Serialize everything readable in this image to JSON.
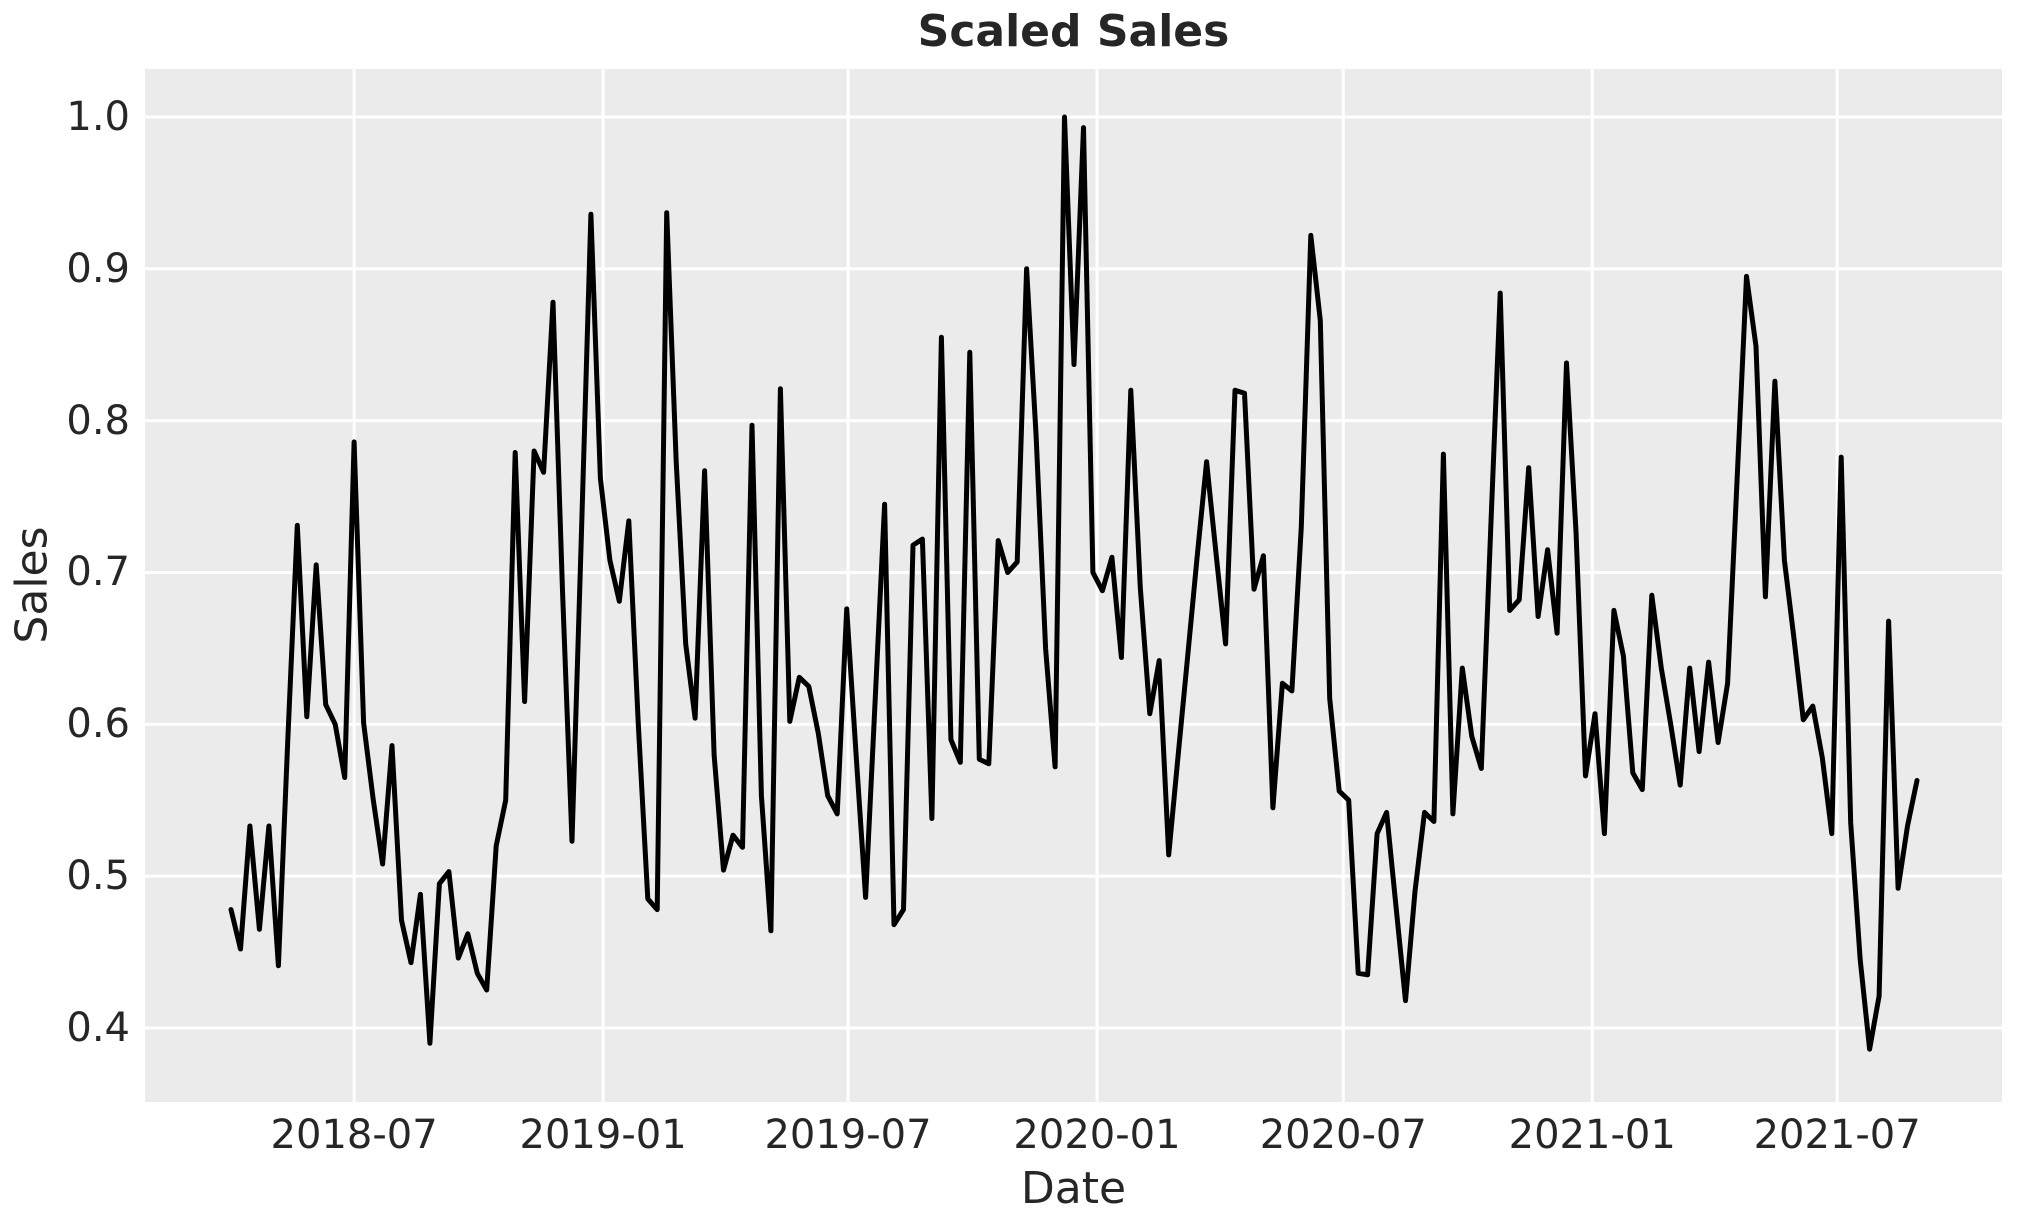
{
  "style": {
    "figure_background": "#ffffff",
    "plot_background": "#ebebeb",
    "grid_color": "#ffffff",
    "line_color": "#000000",
    "text_color": "#262626"
  },
  "chart_data": {
    "type": "line",
    "title": "Scaled Sales",
    "xlabel": "Date",
    "ylabel": "Sales",
    "legend": "none",
    "grid": "on",
    "frequency": "weekly",
    "start_date": "2018-04-01",
    "end_date": "2021-08-29",
    "ylim": [
      0.351,
      1.033
    ],
    "yticks": [
      {
        "label": "1.0",
        "value": 1.0
      },
      {
        "label": "0.9",
        "value": 0.9
      },
      {
        "label": "0.8",
        "value": 0.8
      },
      {
        "label": "0.7",
        "value": 0.7
      },
      {
        "label": "0.6",
        "value": 0.6
      },
      {
        "label": "0.5",
        "value": 0.5
      },
      {
        "label": "0.4",
        "value": 0.4
      }
    ],
    "xticks": [
      {
        "label": "2018-07",
        "week": 13.0
      },
      {
        "label": "2019-01",
        "week": 39.2857
      },
      {
        "label": "2019-07",
        "week": 65.1429
      },
      {
        "label": "2020-01",
        "week": 91.4286
      },
      {
        "label": "2020-07",
        "week": 117.4286
      },
      {
        "label": "2021-01",
        "week": 143.7143
      },
      {
        "label": "2021-07",
        "week": 169.5714
      }
    ],
    "values": [
      0.478,
      0.452,
      0.533,
      0.465,
      0.533,
      0.441,
      0.59,
      0.731,
      0.605,
      0.705,
      0.613,
      0.6,
      0.565,
      0.786,
      0.601,
      0.551,
      0.508,
      0.586,
      0.471,
      0.443,
      0.488,
      0.39,
      0.495,
      0.503,
      0.446,
      0.462,
      0.436,
      0.425,
      0.52,
      0.55,
      0.779,
      0.615,
      0.78,
      0.766,
      0.878,
      0.688,
      0.523,
      0.727,
      0.936,
      0.762,
      0.708,
      0.681,
      0.734,
      0.6,
      0.485,
      0.478,
      0.937,
      0.773,
      0.653,
      0.604,
      0.767,
      0.58,
      0.504,
      0.527,
      0.519,
      0.797,
      0.553,
      0.464,
      0.821,
      0.602,
      0.631,
      0.625,
      0.594,
      0.553,
      0.541,
      0.676,
      0.58,
      0.486,
      0.615,
      0.745,
      0.468,
      0.478,
      0.718,
      0.722,
      0.538,
      0.855,
      0.59,
      0.575,
      0.845,
      0.577,
      0.574,
      0.721,
      0.7,
      0.707,
      0.9,
      0.79,
      0.65,
      0.572,
      1.0,
      0.837,
      0.993,
      0.7,
      0.688,
      0.71,
      0.644,
      0.82,
      0.69,
      0.607,
      0.642,
      0.514,
      0.58,
      0.645,
      0.71,
      0.773,
      0.712,
      0.653,
      0.82,
      0.818,
      0.689,
      0.711,
      0.545,
      0.627,
      0.622,
      0.73,
      0.922,
      0.866,
      0.617,
      0.556,
      0.55,
      0.436,
      0.435,
      0.528,
      0.542,
      0.48,
      0.418,
      0.49,
      0.542,
      0.536,
      0.778,
      0.541,
      0.637,
      0.592,
      0.571,
      0.73,
      0.884,
      0.675,
      0.682,
      0.769,
      0.671,
      0.715,
      0.66,
      0.838,
      0.727,
      0.566,
      0.607,
      0.528,
      0.675,
      0.645,
      0.568,
      0.557,
      0.685,
      0.637,
      0.6,
      0.56,
      0.637,
      0.582,
      0.641,
      0.588,
      0.627,
      0.76,
      0.895,
      0.849,
      0.684,
      0.826,
      0.708,
      0.657,
      0.603,
      0.612,
      0.578,
      0.528,
      0.776,
      0.535,
      0.445,
      0.386,
      0.421,
      0.668,
      0.492,
      0.533,
      0.563
    ]
  }
}
